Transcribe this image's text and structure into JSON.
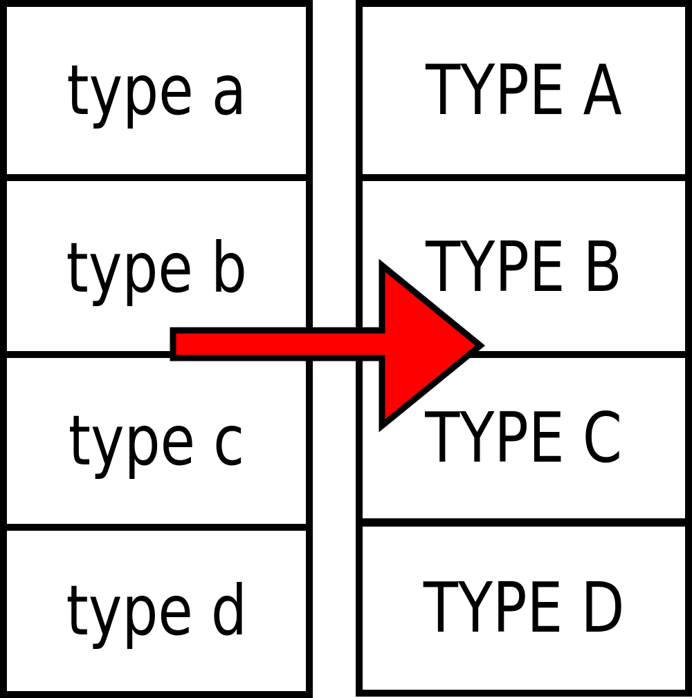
{
  "left_labels": [
    "type a",
    "type b",
    "type c",
    "type d"
  ],
  "right_labels": [
    "TYPE A",
    "TYPE B",
    "TYPE C",
    "TYPE D"
  ],
  "colors": {
    "box_border": "#000000",
    "box_fill": "#ffffff",
    "text": "#000000",
    "arrow_fill": "#ff0000",
    "arrow_stroke": "#000000"
  },
  "arrow": {
    "direction": "left-to-right"
  }
}
